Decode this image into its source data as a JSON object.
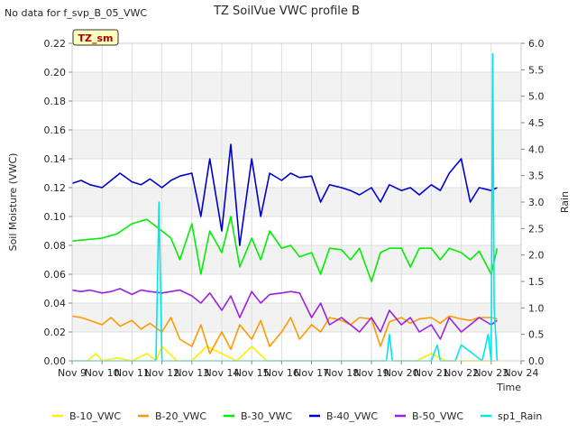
{
  "no_data_note": "No data for f_svp_B_05_VWC",
  "site_tag": "TZ_sm",
  "chart_data": {
    "type": "line",
    "title": "TZ SoilVue VWC profile B",
    "xlabel": "Time",
    "ylabel": "Soil Moisture (VWC)",
    "y2label": "Rain",
    "xlim": [
      9,
      24
    ],
    "ylim": [
      0.0,
      0.22
    ],
    "y2lim": [
      0.0,
      6.0
    ],
    "x_ticks": [
      {
        "x": 9,
        "label": "Nov 9"
      },
      {
        "x": 10,
        "label": "Nov 10"
      },
      {
        "x": 11,
        "label": "Nov 11"
      },
      {
        "x": 12,
        "label": "Nov 12"
      },
      {
        "x": 13,
        "label": "Nov 13"
      },
      {
        "x": 14,
        "label": "Nov 14"
      },
      {
        "x": 15,
        "label": "Nov 15"
      },
      {
        "x": 16,
        "label": "Nov 16"
      },
      {
        "x": 17,
        "label": "Nov 17"
      },
      {
        "x": 18,
        "label": "Nov 18"
      },
      {
        "x": 19,
        "label": "Nov 19"
      },
      {
        "x": 20,
        "label": "Nov 20"
      },
      {
        "x": 21,
        "label": "Nov 21"
      },
      {
        "x": 22,
        "label": "Nov 22"
      },
      {
        "x": 23,
        "label": "Nov 23"
      },
      {
        "x": 24,
        "label": "Nov 24"
      }
    ],
    "y_ticks": [
      "0.00",
      "0.02",
      "0.04",
      "0.06",
      "0.08",
      "0.10",
      "0.12",
      "0.14",
      "0.16",
      "0.18",
      "0.20",
      "0.22"
    ],
    "y2_ticks": [
      "0.0",
      "0.5",
      "1.0",
      "1.5",
      "2.0",
      "2.5",
      "3.0",
      "3.5",
      "4.0",
      "4.5",
      "5.0",
      "5.5",
      "6.0"
    ],
    "grid": true,
    "legend_position": "bottom",
    "series": [
      {
        "name": "B-10_VWC",
        "color": "#ffee00",
        "axis": "left",
        "x": [
          9.0,
          9.5,
          9.8,
          10.0,
          10.5,
          11.0,
          11.5,
          11.8,
          12.0,
          12.5,
          13.0,
          13.5,
          14.0,
          14.5,
          15.0,
          15.5,
          16.0,
          16.5,
          17.0,
          17.5,
          18.0,
          18.5,
          19.0,
          19.5,
          20.0,
          20.5,
          21.0,
          21.5,
          22.0,
          22.5,
          23.0,
          23.2
        ],
        "y": [
          0.0,
          0.0,
          0.005,
          0.0,
          0.002,
          0.0,
          0.005,
          0.0,
          0.01,
          0.0,
          0.0,
          0.01,
          0.005,
          0.0,
          0.01,
          0.0,
          0.0,
          0.0,
          0.0,
          0.0,
          0.0,
          0.0,
          0.0,
          0.0,
          0.0,
          0.0,
          0.005,
          0.0,
          0.0,
          0.0,
          0.0,
          0.0
        ]
      },
      {
        "name": "B-20_VWC",
        "color": "#ff9900",
        "axis": "left",
        "x": [
          9.0,
          9.3,
          9.6,
          10.0,
          10.3,
          10.6,
          11.0,
          11.3,
          11.6,
          12.0,
          12.3,
          12.6,
          13.0,
          13.3,
          13.6,
          14.0,
          14.3,
          14.6,
          15.0,
          15.3,
          15.6,
          16.0,
          16.3,
          16.6,
          17.0,
          17.3,
          17.6,
          18.0,
          18.3,
          18.6,
          19.0,
          19.3,
          19.6,
          20.0,
          20.3,
          20.6,
          21.0,
          21.3,
          21.6,
          22.0,
          22.3,
          22.6,
          23.0,
          23.2
        ],
        "y": [
          0.031,
          0.03,
          0.028,
          0.025,
          0.03,
          0.024,
          0.028,
          0.022,
          0.026,
          0.02,
          0.03,
          0.015,
          0.01,
          0.025,
          0.005,
          0.02,
          0.008,
          0.025,
          0.015,
          0.028,
          0.01,
          0.02,
          0.03,
          0.015,
          0.025,
          0.02,
          0.03,
          0.028,
          0.025,
          0.03,
          0.029,
          0.01,
          0.027,
          0.03,
          0.026,
          0.029,
          0.03,
          0.026,
          0.031,
          0.029,
          0.028,
          0.03,
          0.03,
          0.029
        ]
      },
      {
        "name": "B-30_VWC",
        "color": "#00ee00",
        "axis": "left",
        "x": [
          9.0,
          9.5,
          10.0,
          10.5,
          11.0,
          11.5,
          12.0,
          12.3,
          12.6,
          13.0,
          13.3,
          13.6,
          14.0,
          14.3,
          14.6,
          15.0,
          15.3,
          15.6,
          16.0,
          16.3,
          16.6,
          17.0,
          17.3,
          17.6,
          18.0,
          18.3,
          18.6,
          19.0,
          19.3,
          19.6,
          20.0,
          20.3,
          20.6,
          21.0,
          21.3,
          21.6,
          22.0,
          22.3,
          22.6,
          23.0,
          23.2
        ],
        "y": [
          0.083,
          0.084,
          0.085,
          0.088,
          0.095,
          0.098,
          0.09,
          0.085,
          0.07,
          0.095,
          0.06,
          0.09,
          0.075,
          0.1,
          0.065,
          0.085,
          0.07,
          0.09,
          0.078,
          0.08,
          0.072,
          0.075,
          0.06,
          0.078,
          0.077,
          0.07,
          0.078,
          0.055,
          0.075,
          0.078,
          0.078,
          0.065,
          0.078,
          0.078,
          0.07,
          0.078,
          0.075,
          0.07,
          0.076,
          0.06,
          0.078
        ]
      },
      {
        "name": "B-40_VWC",
        "color": "#0000cc",
        "axis": "left",
        "x": [
          9.0,
          9.3,
          9.6,
          10.0,
          10.3,
          10.6,
          11.0,
          11.3,
          11.6,
          12.0,
          12.3,
          12.6,
          13.0,
          13.3,
          13.6,
          14.0,
          14.3,
          14.6,
          15.0,
          15.3,
          15.6,
          16.0,
          16.3,
          16.6,
          17.0,
          17.3,
          17.6,
          18.0,
          18.3,
          18.6,
          19.0,
          19.3,
          19.6,
          20.0,
          20.3,
          20.6,
          21.0,
          21.3,
          21.6,
          22.0,
          22.3,
          22.6,
          23.0,
          23.2
        ],
        "y": [
          0.123,
          0.125,
          0.122,
          0.12,
          0.125,
          0.13,
          0.124,
          0.122,
          0.126,
          0.12,
          0.125,
          0.128,
          0.13,
          0.1,
          0.14,
          0.09,
          0.15,
          0.08,
          0.14,
          0.1,
          0.13,
          0.125,
          0.13,
          0.127,
          0.128,
          0.11,
          0.122,
          0.12,
          0.118,
          0.115,
          0.12,
          0.11,
          0.122,
          0.118,
          0.12,
          0.115,
          0.122,
          0.118,
          0.13,
          0.14,
          0.11,
          0.12,
          0.118,
          0.12
        ]
      },
      {
        "name": "B-50_VWC",
        "color": "#9922dd",
        "axis": "left",
        "x": [
          9.0,
          9.3,
          9.6,
          10.0,
          10.3,
          10.6,
          11.0,
          11.3,
          11.6,
          12.0,
          12.3,
          12.6,
          13.0,
          13.3,
          13.6,
          14.0,
          14.3,
          14.6,
          15.0,
          15.3,
          15.6,
          16.0,
          16.3,
          16.6,
          17.0,
          17.3,
          17.6,
          18.0,
          18.3,
          18.6,
          19.0,
          19.3,
          19.6,
          20.0,
          20.3,
          20.6,
          21.0,
          21.3,
          21.6,
          22.0,
          22.3,
          22.6,
          23.0,
          23.2
        ],
        "y": [
          0.049,
          0.048,
          0.049,
          0.047,
          0.048,
          0.05,
          0.046,
          0.049,
          0.048,
          0.047,
          0.048,
          0.049,
          0.045,
          0.04,
          0.047,
          0.035,
          0.045,
          0.03,
          0.048,
          0.04,
          0.046,
          0.047,
          0.048,
          0.047,
          0.03,
          0.04,
          0.025,
          0.03,
          0.025,
          0.02,
          0.03,
          0.02,
          0.035,
          0.025,
          0.03,
          0.02,
          0.025,
          0.015,
          0.03,
          0.02,
          0.025,
          0.03,
          0.025,
          0.028
        ]
      },
      {
        "name": "sp1_Rain",
        "color": "#00e5ee",
        "axis": "right",
        "x": [
          9.0,
          11.8,
          11.9,
          12.0,
          16.0,
          17.0,
          18.0,
          19.5,
          19.6,
          19.7,
          21.0,
          21.2,
          21.3,
          21.8,
          22.0,
          22.7,
          22.9,
          23.0,
          23.05,
          23.1,
          23.2
        ],
        "y": [
          0.0,
          0.0,
          3.0,
          0.0,
          0.0,
          0.0,
          0.0,
          0.0,
          0.5,
          0.0,
          0.0,
          0.3,
          0.0,
          0.0,
          0.3,
          0.0,
          0.5,
          0.0,
          5.8,
          1.0,
          0.0
        ]
      }
    ]
  }
}
